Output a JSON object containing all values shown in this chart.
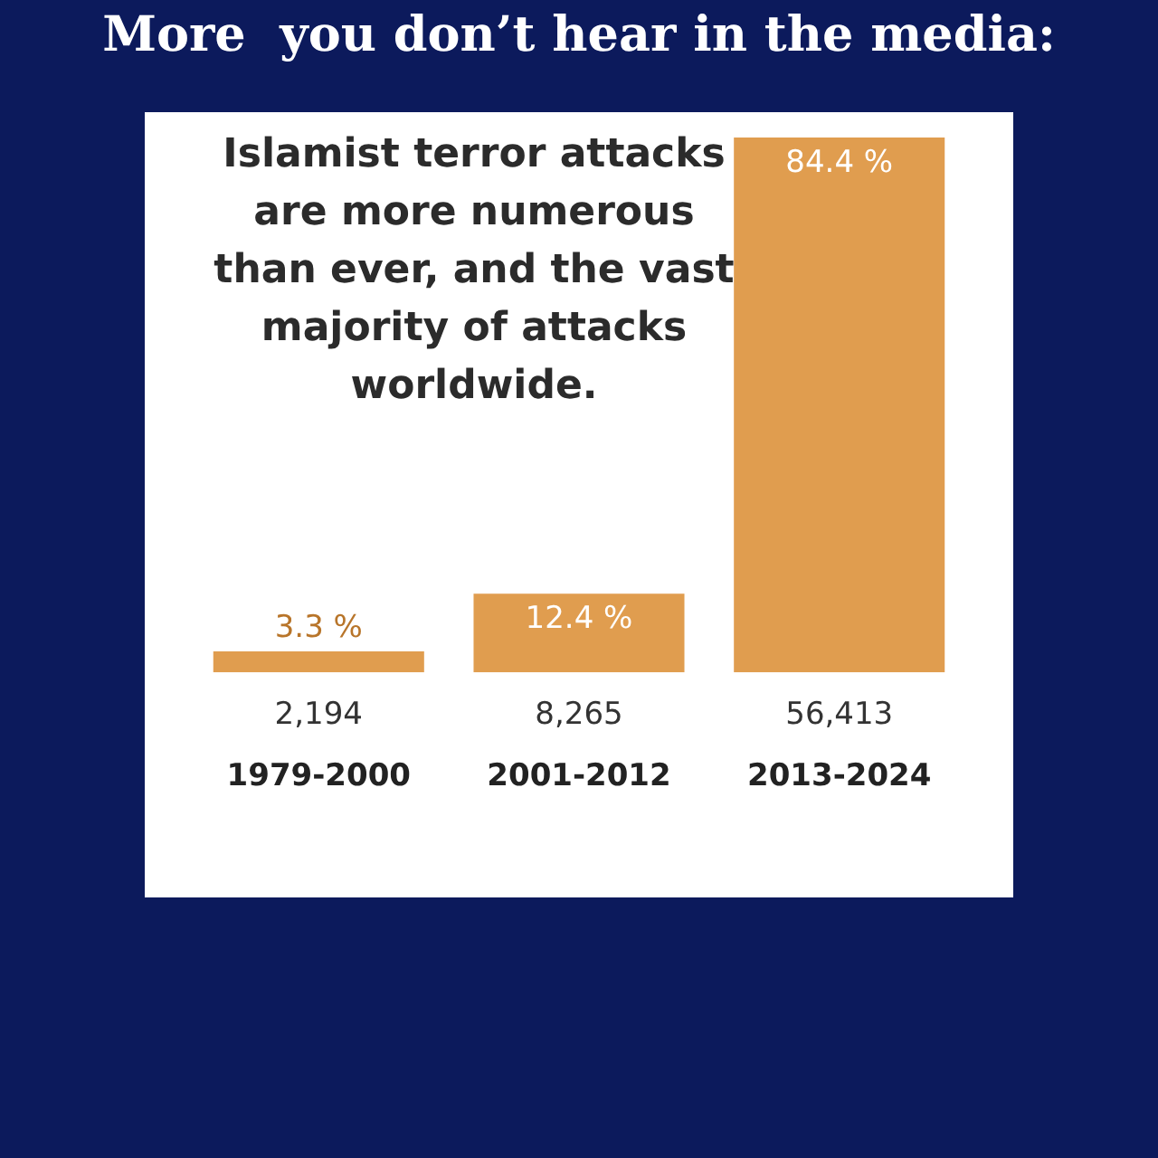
{
  "chart_data": {
    "type": "bar",
    "title": "More  you don’t hear in the media:",
    "subtitle": "Islamist terror attacks are more numerous than ever, and the vast majority of attacks worldwide.",
    "categories": [
      "1979-2000",
      "2001-2012",
      "2013-2024"
    ],
    "values": [
      3.3,
      12.4,
      84.4
    ],
    "value_labels": [
      "3.3 %",
      "12.4 %",
      "84.4 %"
    ],
    "color": "#e09d4f",
    "grid": false,
    "legend": false,
    "annotations": [
      "2,194",
      "8,265",
      "56,413"
    ]
  }
}
